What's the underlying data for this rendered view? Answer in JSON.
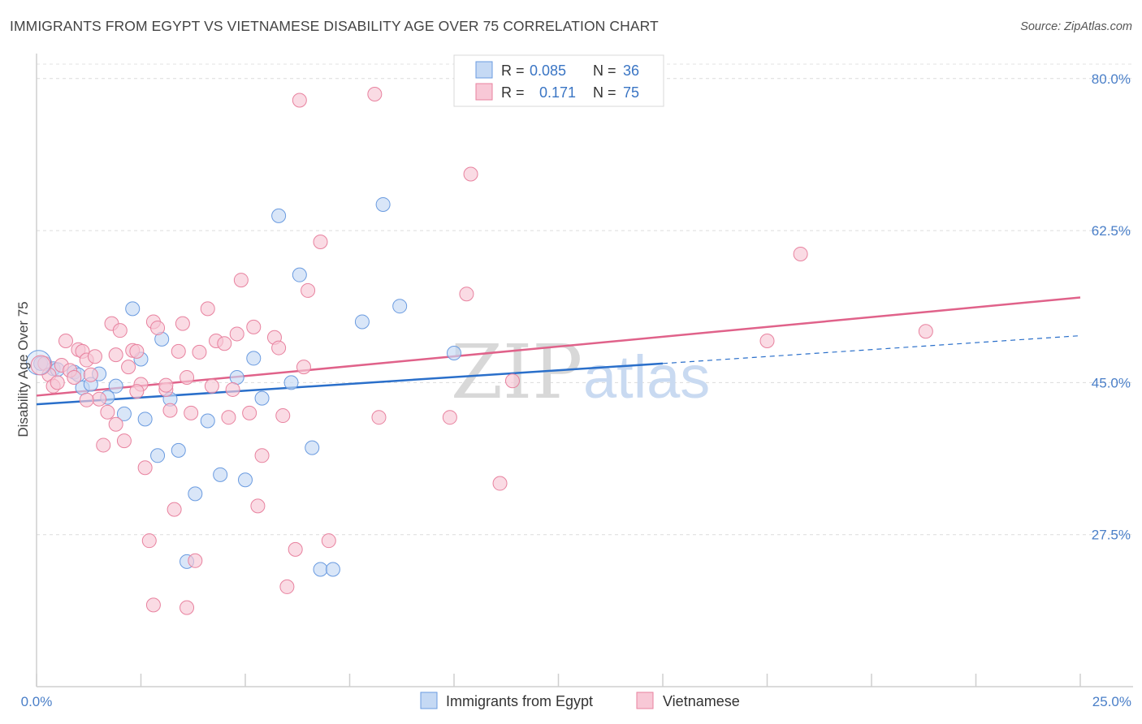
{
  "title": "IMMIGRANTS FROM EGYPT VS VIETNAMESE DISABILITY AGE OVER 75 CORRELATION CHART",
  "source": "Source: ZipAtlas.com",
  "watermark": {
    "zip": "ZIP",
    "atlas": "atlas"
  },
  "chart_data": {
    "type": "scatter",
    "title": "IMMIGRANTS FROM EGYPT VS VIETNAMESE DISABILITY AGE OVER 75 CORRELATION CHART",
    "xlabel": "",
    "ylabel": "Disability Age Over 75",
    "xlim": [
      0,
      25
    ],
    "ylim": [
      10,
      82.5
    ],
    "x_tick_labels": [
      "0.0%",
      "25.0%"
    ],
    "y_ticks": [
      27.5,
      45.0,
      62.5,
      80.0
    ],
    "y_tick_labels": [
      "27.5%",
      "45.0%",
      "62.5%",
      "80.0%"
    ],
    "grid": true,
    "legend_position": "top-center",
    "stats": [
      {
        "r_label": "R =",
        "r_value": "0.085",
        "n_label": "N =",
        "n_value": "36"
      },
      {
        "r_label": "R =",
        "r_value": "0.171",
        "n_label": "N =",
        "n_value": "75"
      }
    ],
    "series": [
      {
        "name": "Immigrants from Egypt",
        "color": "#6a9be0",
        "fill": "#c5d9f4",
        "trend": {
          "x": [
            0,
            15
          ],
          "y": [
            42.5,
            47.2
          ],
          "dash_to_x": 25,
          "dash_to_y": 50.4
        },
        "points": [
          [
            0.1,
            47.2
          ],
          [
            0.4,
            46.6
          ],
          [
            0.5,
            46.5
          ],
          [
            0.9,
            46.2
          ],
          [
            1.1,
            44.4
          ],
          [
            1.0,
            45.9
          ],
          [
            1.3,
            44.8
          ],
          [
            1.5,
            46.0
          ],
          [
            1.7,
            43.3
          ],
          [
            1.9,
            44.6
          ],
          [
            2.1,
            41.4
          ],
          [
            2.3,
            53.5
          ],
          [
            2.5,
            47.7
          ],
          [
            2.6,
            40.8
          ],
          [
            2.9,
            36.6
          ],
          [
            3.0,
            50.0
          ],
          [
            3.2,
            43.1
          ],
          [
            3.4,
            37.2
          ],
          [
            3.6,
            24.4
          ],
          [
            3.8,
            32.2
          ],
          [
            4.1,
            40.6
          ],
          [
            4.4,
            34.4
          ],
          [
            4.8,
            45.6
          ],
          [
            5.0,
            33.8
          ],
          [
            5.2,
            47.8
          ],
          [
            5.4,
            43.2
          ],
          [
            5.8,
            64.2
          ],
          [
            6.1,
            45.0
          ],
          [
            6.3,
            57.4
          ],
          [
            6.6,
            37.5
          ],
          [
            6.8,
            23.5
          ],
          [
            7.1,
            23.5
          ],
          [
            7.8,
            52.0
          ],
          [
            8.3,
            65.5
          ],
          [
            8.7,
            53.8
          ],
          [
            10.0,
            48.4
          ]
        ]
      },
      {
        "name": "Vietnamese",
        "color": "#e8829f",
        "fill": "#f8c8d6",
        "trend": {
          "x": [
            0,
            25
          ],
          "y": [
            43.5,
            54.8
          ]
        },
        "points": [
          [
            0.2,
            47.2
          ],
          [
            0.3,
            45.9
          ],
          [
            0.4,
            44.6
          ],
          [
            0.6,
            47.0
          ],
          [
            0.7,
            49.8
          ],
          [
            0.8,
            46.4
          ],
          [
            0.9,
            45.6
          ],
          [
            1.0,
            48.8
          ],
          [
            1.1,
            48.6
          ],
          [
            1.2,
            47.6
          ],
          [
            1.3,
            45.9
          ],
          [
            1.4,
            48.0
          ],
          [
            1.5,
            43.1
          ],
          [
            1.6,
            37.8
          ],
          [
            1.7,
            41.6
          ],
          [
            1.8,
            51.8
          ],
          [
            1.9,
            40.2
          ],
          [
            2.0,
            51.0
          ],
          [
            2.1,
            38.3
          ],
          [
            2.2,
            46.8
          ],
          [
            2.3,
            48.7
          ],
          [
            2.4,
            48.6
          ],
          [
            2.5,
            44.8
          ],
          [
            2.6,
            35.2
          ],
          [
            2.7,
            26.8
          ],
          [
            2.8,
            19.4
          ],
          [
            2.8,
            52.0
          ],
          [
            2.9,
            51.3
          ],
          [
            3.1,
            44.2
          ],
          [
            3.1,
            44.7
          ],
          [
            3.2,
            41.8
          ],
          [
            3.3,
            30.4
          ],
          [
            3.4,
            48.6
          ],
          [
            3.5,
            51.8
          ],
          [
            3.6,
            19.1
          ],
          [
            3.7,
            41.5
          ],
          [
            3.8,
            24.5
          ],
          [
            3.9,
            48.5
          ],
          [
            4.1,
            53.5
          ],
          [
            4.2,
            44.6
          ],
          [
            4.3,
            49.8
          ],
          [
            4.5,
            49.5
          ],
          [
            4.6,
            41.0
          ],
          [
            4.7,
            44.2
          ],
          [
            4.8,
            50.6
          ],
          [
            4.9,
            56.8
          ],
          [
            5.1,
            41.5
          ],
          [
            5.2,
            51.4
          ],
          [
            5.3,
            30.8
          ],
          [
            5.4,
            36.6
          ],
          [
            5.7,
            50.2
          ],
          [
            5.8,
            49.0
          ],
          [
            5.9,
            41.2
          ],
          [
            6.0,
            21.5
          ],
          [
            6.2,
            25.8
          ],
          [
            6.3,
            77.5
          ],
          [
            6.4,
            46.8
          ],
          [
            6.5,
            55.6
          ],
          [
            6.8,
            61.2
          ],
          [
            7.0,
            26.8
          ],
          [
            8.1,
            78.2
          ],
          [
            8.2,
            41.0
          ],
          [
            9.9,
            41.0
          ],
          [
            10.3,
            55.2
          ],
          [
            10.4,
            69.0
          ],
          [
            11.1,
            33.4
          ],
          [
            11.4,
            45.2
          ],
          [
            17.5,
            49.8
          ],
          [
            18.3,
            59.8
          ],
          [
            21.3,
            50.9
          ],
          [
            1.9,
            48.2
          ],
          [
            2.4,
            44.0
          ],
          [
            3.6,
            45.6
          ],
          [
            0.5,
            45.0
          ],
          [
            1.2,
            43.0
          ]
        ]
      }
    ]
  }
}
